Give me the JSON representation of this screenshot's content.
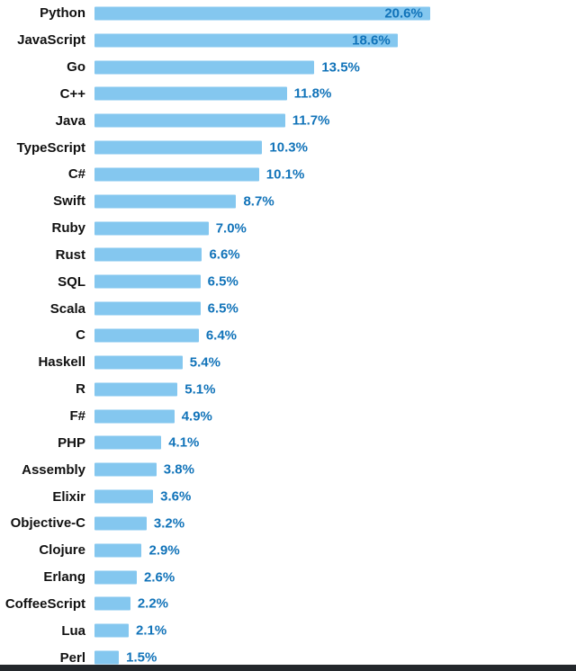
{
  "chart_data": {
    "type": "bar",
    "orientation": "horizontal",
    "title": "",
    "categories": [
      "Python",
      "JavaScript",
      "Go",
      "C++",
      "Java",
      "TypeScript",
      "C#",
      "Swift",
      "Ruby",
      "Rust",
      "SQL",
      "Scala",
      "C",
      "Haskell",
      "R",
      "F#",
      "PHP",
      "Assembly",
      "Elixir",
      "Objective-C",
      "Clojure",
      "Erlang",
      "CoffeeScript",
      "Lua",
      "Perl"
    ],
    "values": [
      20.6,
      18.6,
      13.5,
      11.8,
      11.7,
      10.3,
      10.1,
      8.7,
      7.0,
      6.6,
      6.5,
      6.5,
      6.4,
      5.4,
      5.1,
      4.9,
      4.1,
      3.8,
      3.6,
      3.2,
      2.9,
      2.6,
      2.2,
      2.1,
      1.5
    ],
    "value_suffix": "%",
    "xlim": [
      0,
      22
    ],
    "grid": false,
    "legend": "none",
    "bar_color": "#84C7EF",
    "value_color": "#1173B9",
    "label_color": "#111111"
  }
}
